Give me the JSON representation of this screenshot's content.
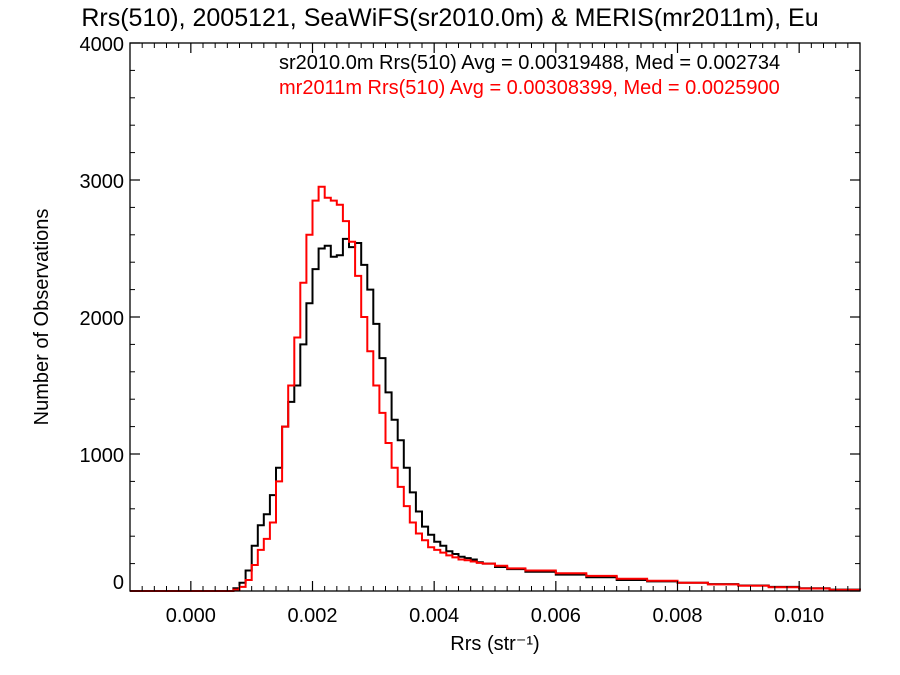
{
  "chart_data": {
    "type": "line",
    "title": "Rrs(510), 2005121, SeaWiFS(sr2010.0m) & MERIS(mr2011m), Eu",
    "xlabel": "Rrs (str⁻¹)",
    "ylabel": "Number of Observations",
    "xlim": [
      -0.001,
      0.011
    ],
    "ylim": [
      0,
      4000
    ],
    "xticks": [
      0.0,
      0.002,
      0.004,
      0.006,
      0.008,
      0.01
    ],
    "xtick_labels": [
      "0.000",
      "0.002",
      "0.004",
      "0.006",
      "0.008",
      "0.010"
    ],
    "yticks": [
      0,
      1000,
      2000,
      3000,
      4000
    ],
    "ytick_labels": [
      "0",
      "1000",
      "2000",
      "3000",
      "4000"
    ],
    "grid": false,
    "annotations": [
      {
        "text": "sr2010.0m Rrs(510) Avg = 0.00319488, Med = 0.002734",
        "color": "#000000"
      },
      {
        "text": "mr2011m Rrs(510) Avg = 0.00308399, Med = 0.0025900",
        "color": "#ff0000"
      }
    ],
    "series": [
      {
        "color": "#000000",
        "x": [
          -0.001,
          0.0005,
          0.0007,
          0.0008,
          0.0009,
          0.001,
          0.0011,
          0.0012,
          0.0013,
          0.0014,
          0.0015,
          0.0016,
          0.0017,
          0.0018,
          0.0019,
          0.002,
          0.0021,
          0.0022,
          0.0023,
          0.0024,
          0.0025,
          0.0026,
          0.0027,
          0.0028,
          0.0029,
          0.003,
          0.0031,
          0.0032,
          0.0033,
          0.0034,
          0.0035,
          0.0036,
          0.0037,
          0.0038,
          0.0039,
          0.004,
          0.0041,
          0.0042,
          0.0043,
          0.0044,
          0.0045,
          0.0046,
          0.0047,
          0.0048,
          0.005,
          0.0052,
          0.0055,
          0.006,
          0.0065,
          0.007,
          0.0075,
          0.008,
          0.0085,
          0.009,
          0.0095,
          0.01,
          0.0105,
          0.011
        ],
        "values": [
          0,
          0,
          20,
          60,
          150,
          330,
          480,
          560,
          700,
          900,
          1200,
          1380,
          1500,
          1800,
          2100,
          2350,
          2500,
          2520,
          2440,
          2450,
          2570,
          2510,
          2540,
          2380,
          2200,
          1950,
          1700,
          1450,
          1250,
          1100,
          900,
          720,
          580,
          470,
          410,
          360,
          330,
          290,
          270,
          250,
          240,
          230,
          210,
          200,
          175,
          160,
          140,
          120,
          100,
          80,
          70,
          60,
          50,
          40,
          30,
          20,
          10,
          5
        ]
      },
      {
        "color": "#ff0000",
        "x": [
          -0.001,
          0.0005,
          0.0007,
          0.0008,
          0.0009,
          0.001,
          0.0011,
          0.0012,
          0.0013,
          0.0014,
          0.0015,
          0.0016,
          0.0017,
          0.0018,
          0.0019,
          0.002,
          0.0021,
          0.0022,
          0.0023,
          0.0024,
          0.0025,
          0.0026,
          0.0027,
          0.0028,
          0.0029,
          0.003,
          0.0031,
          0.0032,
          0.0033,
          0.0034,
          0.0035,
          0.0036,
          0.0037,
          0.0038,
          0.0039,
          0.004,
          0.0041,
          0.0042,
          0.0043,
          0.0044,
          0.0045,
          0.0046,
          0.0047,
          0.0048,
          0.005,
          0.0052,
          0.0055,
          0.006,
          0.0065,
          0.007,
          0.0075,
          0.008,
          0.0085,
          0.009,
          0.0095,
          0.01,
          0.0105,
          0.011
        ],
        "values": [
          0,
          0,
          10,
          30,
          80,
          190,
          300,
          380,
          500,
          800,
          1200,
          1500,
          1850,
          2250,
          2600,
          2850,
          2950,
          2870,
          2850,
          2820,
          2700,
          2550,
          2300,
          2000,
          1750,
          1500,
          1300,
          1080,
          900,
          760,
          620,
          500,
          420,
          370,
          320,
          300,
          280,
          260,
          245,
          230,
          225,
          215,
          205,
          200,
          185,
          165,
          150,
          130,
          110,
          90,
          75,
          60,
          48,
          38,
          28,
          18,
          8,
          4
        ]
      }
    ]
  }
}
